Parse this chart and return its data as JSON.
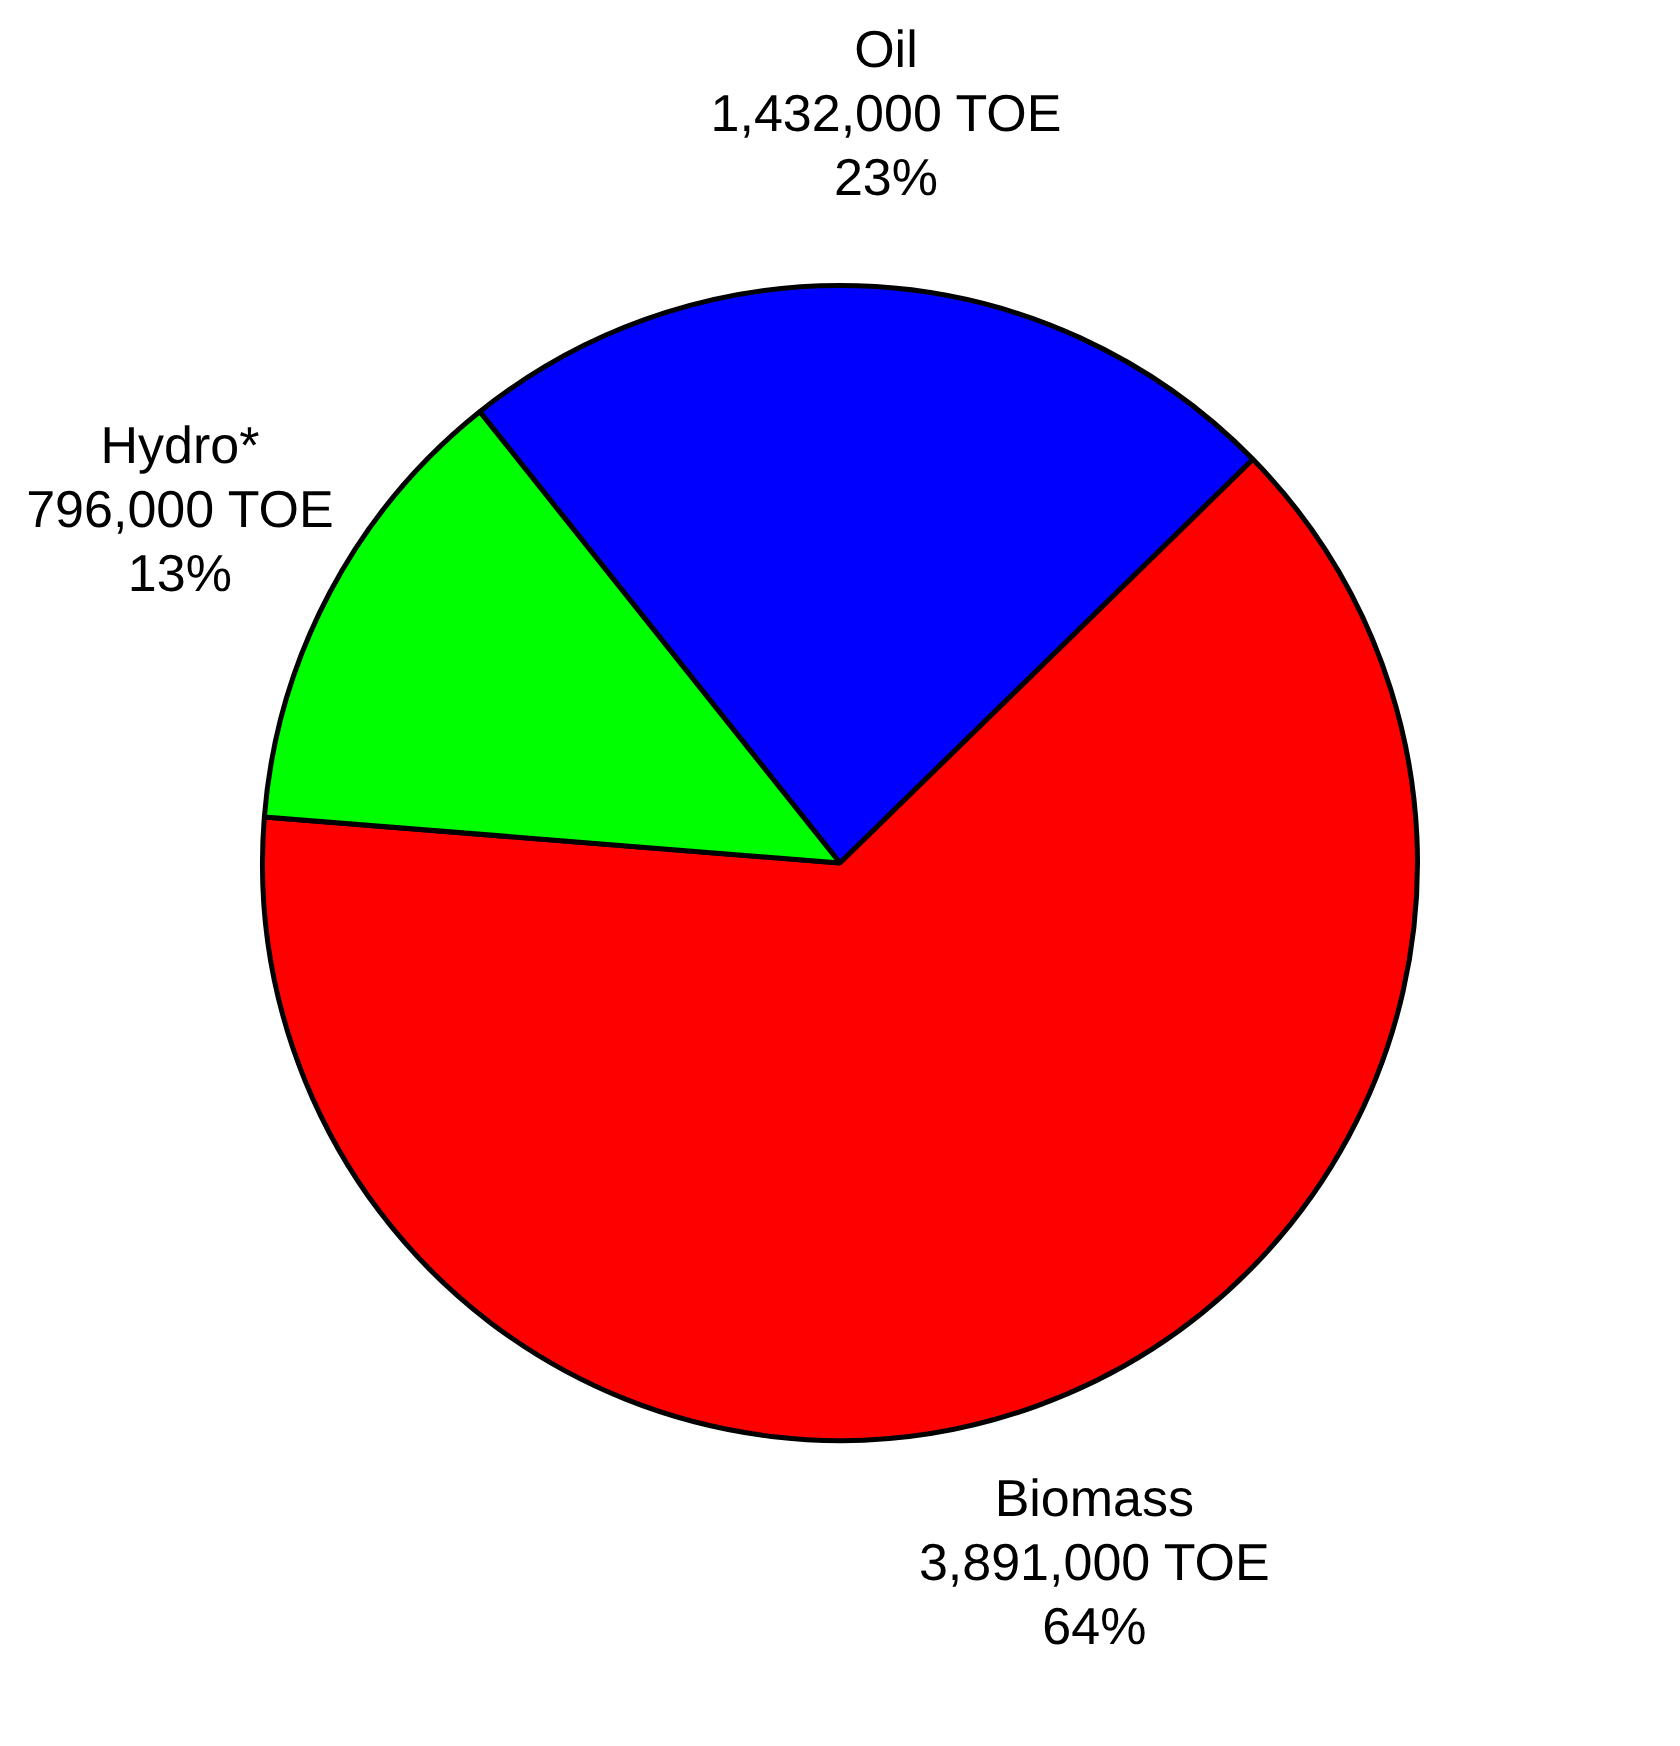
{
  "chart_data": {
    "type": "pie",
    "categories": [
      "Oil",
      "Biomass",
      "Hydro*"
    ],
    "values": [
      1432000,
      3891000,
      796000
    ],
    "colors": [
      "#0000ff",
      "#ff0000",
      "#00ff00"
    ],
    "value_labels": [
      "1,432,000 TOE\n23%",
      "3,891,000 TOE\n64%",
      "796,000 TOE\n13%"
    ],
    "legend": false
  }
}
